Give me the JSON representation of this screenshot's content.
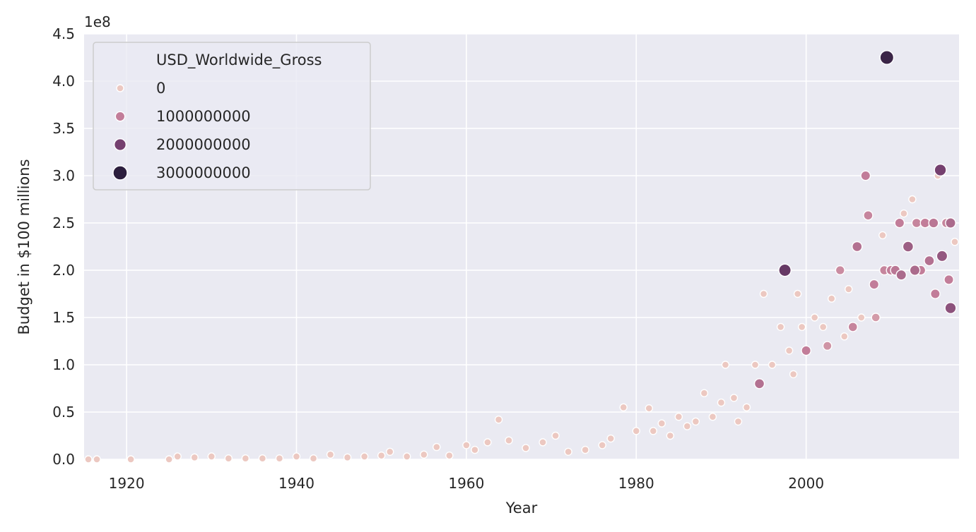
{
  "chart_data": {
    "type": "scatter",
    "title": "",
    "xlabel": "Year",
    "ylabel": "Budget in $100 millions",
    "y_offset_text": "1e8",
    "xlim": [
      1915,
      2018
    ],
    "ylim": [
      0,
      450000000
    ],
    "x_ticks": [
      1920,
      1940,
      1960,
      1980,
      2000
    ],
    "x_tick_labels": [
      "1920",
      "1940",
      "1960",
      "1980",
      "2000"
    ],
    "y_ticks": [
      0,
      50000000,
      100000000,
      150000000,
      200000000,
      250000000,
      300000000,
      350000000,
      400000000,
      450000000
    ],
    "y_tick_labels": [
      "0.0",
      "0.5",
      "1.0",
      "1.5",
      "2.0",
      "2.5",
      "3.0",
      "3.5",
      "4.0",
      "4.5"
    ],
    "grid": true,
    "background": "#eaeaf2",
    "legend": {
      "title": "USD_Worldwide_Gross",
      "placement": "top-left",
      "entries": [
        {
          "label": "0",
          "value": 0,
          "color": "#ecc8c1"
        },
        {
          "label": "1000000000",
          "value": 1000000000,
          "color": "#c27d99"
        },
        {
          "label": "2000000000",
          "value": 2000000000,
          "color": "#75406f"
        },
        {
          "label": "3000000000",
          "value": 3000000000,
          "color": "#2c1e3d"
        }
      ]
    },
    "hue_size_variable": "USD_Worldwide_Gross",
    "points": [
      [
        1915.5,
        0,
        0
      ],
      [
        1916.5,
        0,
        0
      ],
      [
        1920.5,
        0,
        0
      ],
      [
        1925,
        0,
        0
      ],
      [
        1926,
        3000000,
        0
      ],
      [
        1928,
        2000000,
        0
      ],
      [
        1930,
        3000000,
        0
      ],
      [
        1932,
        1000000,
        0
      ],
      [
        1934,
        1000000,
        0
      ],
      [
        1936,
        1000000,
        0
      ],
      [
        1938,
        1000000,
        0
      ],
      [
        1940,
        3000000,
        0
      ],
      [
        1942,
        1000000,
        0
      ],
      [
        1944,
        5000000,
        0
      ],
      [
        1946,
        2000000,
        0
      ],
      [
        1948,
        3000000,
        0
      ],
      [
        1950,
        4000000,
        0
      ],
      [
        1951,
        8000000,
        0
      ],
      [
        1953,
        3000000,
        0
      ],
      [
        1955,
        5000000,
        0
      ],
      [
        1956.5,
        13000000,
        0
      ],
      [
        1958,
        4000000,
        0
      ],
      [
        1960,
        15000000,
        0
      ],
      [
        1961,
        10000000,
        0
      ],
      [
        1962.5,
        18000000,
        0
      ],
      [
        1963.8,
        42000000,
        0
      ],
      [
        1965,
        20000000,
        0
      ],
      [
        1967,
        12000000,
        0
      ],
      [
        1969,
        18000000,
        0
      ],
      [
        1970.5,
        25000000,
        0
      ],
      [
        1972,
        8000000,
        0
      ],
      [
        1974,
        10000000,
        0
      ],
      [
        1976,
        15000000,
        0
      ],
      [
        1977,
        22000000,
        0
      ],
      [
        1978.5,
        55000000,
        0
      ],
      [
        1980,
        30000000,
        0
      ],
      [
        1981.5,
        54000000,
        0
      ],
      [
        1982,
        30000000,
        0
      ],
      [
        1983,
        38000000,
        0
      ],
      [
        1984,
        25000000,
        0
      ],
      [
        1985,
        45000000,
        0
      ],
      [
        1986,
        35000000,
        0
      ],
      [
        1987,
        40000000,
        0
      ],
      [
        1988,
        70000000,
        0
      ],
      [
        1989,
        45000000,
        0
      ],
      [
        1990,
        60000000,
        0
      ],
      [
        1990.5,
        100000000,
        0
      ],
      [
        1991.5,
        65000000,
        0
      ],
      [
        1992,
        40000000,
        0
      ],
      [
        1993,
        55000000,
        0
      ],
      [
        1994,
        100000000,
        0
      ],
      [
        1994.5,
        80000000,
        1200000000
      ],
      [
        1995,
        175000000,
        0
      ],
      [
        1996,
        100000000,
        0
      ],
      [
        1997.5,
        200000000,
        2200000000
      ],
      [
        1997,
        140000000,
        0
      ],
      [
        1998,
        115000000,
        0
      ],
      [
        1998.5,
        90000000,
        0
      ],
      [
        1999,
        175000000,
        0
      ],
      [
        1999.5,
        140000000,
        0
      ],
      [
        2000,
        115000000,
        1000000000
      ],
      [
        2001,
        150000000,
        0
      ],
      [
        2002,
        140000000,
        0
      ],
      [
        2002.5,
        120000000,
        700000000
      ],
      [
        2003,
        170000000,
        0
      ],
      [
        2004,
        200000000,
        800000000
      ],
      [
        2004.5,
        130000000,
        0
      ],
      [
        2005,
        180000000,
        0
      ],
      [
        2006,
        225000000,
        1200000000
      ],
      [
        2006.5,
        150000000,
        0
      ],
      [
        2007,
        300000000,
        1000000000
      ],
      [
        2007.3,
        258000000,
        900000000
      ],
      [
        2008,
        185000000,
        1000000000
      ],
      [
        2009,
        237000000,
        0
      ],
      [
        2009.5,
        425000000,
        2800000000
      ],
      [
        2010,
        200000000,
        1000000000
      ],
      [
        2011,
        250000000,
        1000000000
      ],
      [
        2011.5,
        260000000,
        0
      ],
      [
        2012,
        225000000,
        1500000000
      ],
      [
        2012.5,
        275000000,
        0
      ],
      [
        2013,
        250000000,
        900000000
      ],
      [
        2014,
        250000000,
        1000000000
      ],
      [
        2014.5,
        210000000,
        1200000000
      ],
      [
        2015,
        250000000,
        1100000000
      ],
      [
        2015.5,
        300000000,
        0
      ],
      [
        2015.8,
        306000000,
        2000000000
      ],
      [
        2016,
        215000000,
        1600000000
      ],
      [
        2016.5,
        250000000,
        900000000
      ],
      [
        2017,
        250000000,
        1300000000
      ],
      [
        2017.5,
        230000000,
        0
      ],
      [
        2017,
        160000000,
        1700000000
      ],
      [
        2016.8,
        190000000,
        1000000000
      ],
      [
        2015.2,
        175000000,
        1000000000
      ],
      [
        2013.5,
        200000000,
        1000000000
      ],
      [
        2012.8,
        200000000,
        1300000000
      ],
      [
        2011.2,
        195000000,
        1300000000
      ],
      [
        2010.5,
        200000000,
        1100000000
      ],
      [
        2009.2,
        200000000,
        900000000
      ],
      [
        2008.2,
        150000000,
        600000000
      ],
      [
        2005.5,
        140000000,
        900000000
      ]
    ]
  }
}
